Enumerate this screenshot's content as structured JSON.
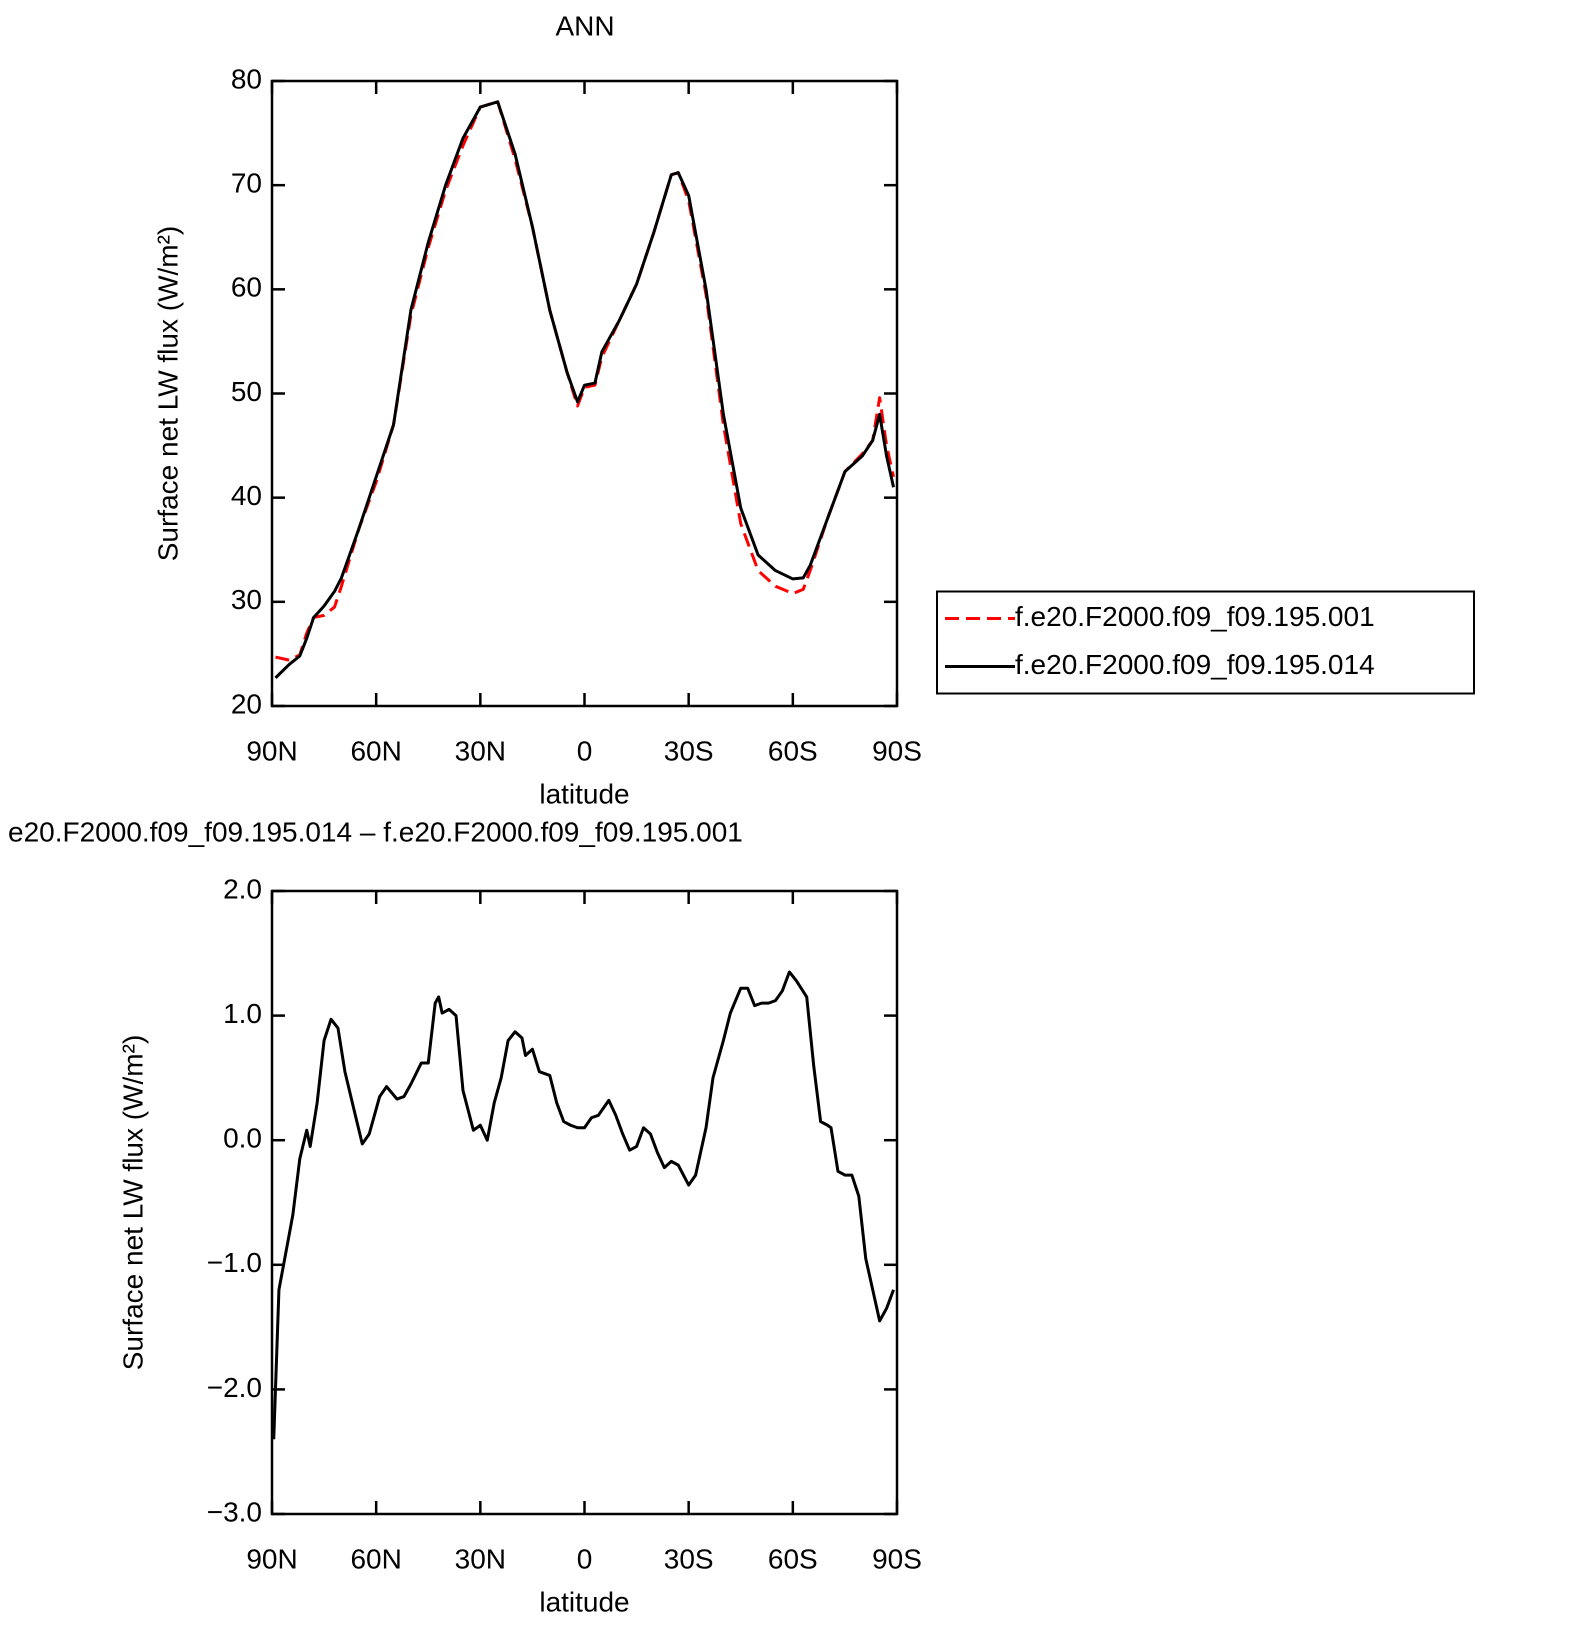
{
  "chart_data": [
    {
      "type": "line",
      "title": "ANN",
      "xlabel": "latitude",
      "ylabel": "Surface net LW flux (W/m²)",
      "x": [
        89,
        85,
        82,
        80,
        78,
        75,
        72,
        70,
        65,
        60,
        55,
        50,
        45,
        40,
        35,
        30,
        25,
        20,
        15,
        10,
        5,
        2,
        0,
        -3,
        -5,
        -10,
        -15,
        -20,
        -25,
        -27,
        -30,
        -35,
        -40,
        -45,
        -50,
        -55,
        -60,
        -63,
        -65,
        -70,
        -75,
        -80,
        -83,
        -85,
        -87,
        -89
      ],
      "series": [
        {
          "name": "f.e20.F2000.f09_f09.195.001",
          "color": "#ff0000",
          "line_style": "dashed",
          "values": [
            24.7,
            24.4,
            24.9,
            27,
            28.5,
            28.7,
            29.5,
            31.5,
            37,
            41.5,
            47,
            57.5,
            64,
            69.5,
            73.8,
            77.5,
            78,
            72.5,
            66,
            58,
            52,
            48.8,
            50.6,
            50.8,
            53.5,
            57,
            60.5,
            65.5,
            71,
            71.2,
            68.5,
            59.5,
            47,
            37.5,
            33,
            31.5,
            30.8,
            31.2,
            33,
            38,
            42.5,
            44.2,
            45.5,
            49.6,
            45,
            42
          ]
        },
        {
          "name": "f.e20.F2000.f09_f09.195.014",
          "color": "#000000",
          "line_style": "solid",
          "values": [
            22.7,
            24,
            24.8,
            26.5,
            28.5,
            29.6,
            31,
            32.3,
            37,
            42,
            47,
            58,
            64.5,
            70,
            74.5,
            77.5,
            78,
            73,
            66,
            58,
            52,
            49.2,
            50.8,
            51,
            54,
            57,
            60.5,
            65.5,
            71,
            71.2,
            69,
            60,
            48,
            39,
            34.5,
            33,
            32.2,
            32.3,
            33.5,
            38,
            42.5,
            44,
            45.5,
            48,
            44,
            41
          ]
        }
      ],
      "xlim": [
        90,
        -90
      ],
      "xticks": [
        {
          "value": 90,
          "label": "90N"
        },
        {
          "value": 60,
          "label": "60N"
        },
        {
          "value": 30,
          "label": "30N"
        },
        0,
        {
          "value": -30,
          "label": "30S"
        },
        {
          "value": -60,
          "label": "60S"
        },
        {
          "value": -90,
          "label": "90S"
        }
      ],
      "ylim": [
        20,
        80
      ],
      "yticks": [
        20,
        30,
        40,
        50,
        60,
        70,
        80
      ],
      "grid": false,
      "legend": "right"
    },
    {
      "type": "line",
      "title": "e20.F2000.f09_f09.195.014 – f.e20.F2000.f09_f09.195.001",
      "xlabel": "latitude",
      "ylabel": "Surface net LW flux (W/m²)",
      "x": [
        89.5,
        88,
        86,
        84,
        82,
        80,
        79,
        77,
        75,
        73,
        71,
        69,
        66,
        64,
        62,
        59,
        57,
        54,
        52,
        50,
        47,
        45,
        43,
        42,
        41,
        39,
        37,
        35,
        32,
        30,
        28,
        26,
        24,
        22,
        20,
        18,
        17,
        15,
        13,
        10,
        8,
        6,
        4,
        2,
        0,
        -2,
        -4,
        -7,
        -9,
        -11,
        -13,
        -15,
        -17,
        -19,
        -21,
        -23,
        -25,
        -27,
        -30,
        -32,
        -35,
        -37,
        -40,
        -42,
        -45,
        -47,
        -49,
        -51,
        -53,
        -55,
        -57,
        -59,
        -61,
        -64,
        -66,
        -68,
        -70,
        -71,
        -73,
        -75,
        -77,
        -79,
        -81,
        -83,
        -85,
        -87,
        -89
      ],
      "values": [
        -2.4,
        -1.2,
        -0.9,
        -0.6,
        -0.15,
        0.08,
        -0.05,
        0.3,
        0.8,
        0.97,
        0.9,
        0.55,
        0.2,
        -0.03,
        0.05,
        0.35,
        0.43,
        0.33,
        0.35,
        0.45,
        0.62,
        0.62,
        1.1,
        1.15,
        1.02,
        1.05,
        1.0,
        0.4,
        0.08,
        0.12,
        0.0,
        0.3,
        0.5,
        0.8,
        0.87,
        0.82,
        0.68,
        0.73,
        0.55,
        0.52,
        0.3,
        0.15,
        0.12,
        0.1,
        0.1,
        0.18,
        0.2,
        0.32,
        0.2,
        0.05,
        -0.08,
        -0.05,
        0.1,
        0.05,
        -0.1,
        -0.22,
        -0.17,
        -0.2,
        -0.36,
        -0.28,
        0.1,
        0.5,
        0.8,
        1.02,
        1.22,
        1.22,
        1.08,
        1.1,
        1.1,
        1.12,
        1.2,
        1.35,
        1.28,
        1.15,
        0.6,
        0.15,
        0.12,
        0.1,
        -0.25,
        -0.28,
        -0.28,
        -0.45,
        -0.95,
        -1.2,
        -1.45,
        -1.35,
        -1.2
      ],
      "color": "#000000",
      "xlim": [
        90,
        -90
      ],
      "xticks": [
        {
          "value": 90,
          "label": "90N"
        },
        {
          "value": 60,
          "label": "60N"
        },
        {
          "value": 30,
          "label": "30N"
        },
        0,
        {
          "value": -30,
          "label": "30S"
        },
        {
          "value": -60,
          "label": "60S"
        },
        {
          "value": -90,
          "label": "90S"
        }
      ],
      "ylim": [
        -3,
        2
      ],
      "yticks": [
        {
          "value": -3,
          "label": "−3.0"
        },
        {
          "value": -2,
          "label": "−2.0"
        },
        {
          "value": -1,
          "label": "−1.0"
        },
        {
          "value": 0,
          "label": "0.0"
        },
        {
          "value": 1,
          "label": "1.0"
        },
        {
          "value": 2,
          "label": "2.0"
        }
      ],
      "grid": false
    }
  ]
}
